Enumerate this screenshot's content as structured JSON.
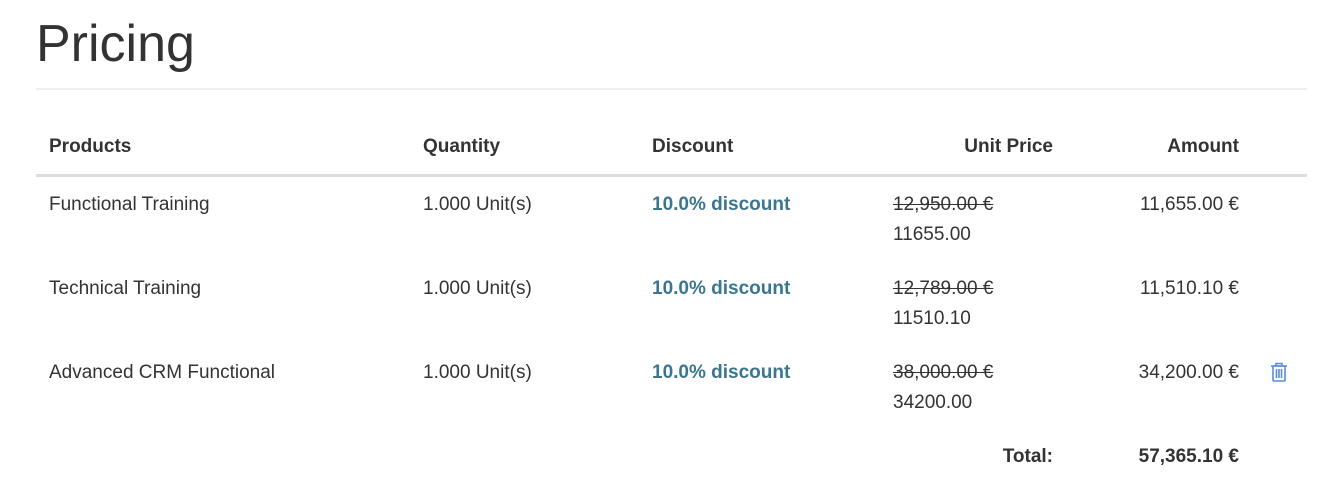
{
  "title": "Pricing",
  "columns": {
    "products": "Products",
    "quantity": "Quantity",
    "discount": "Discount",
    "unit_price": "Unit Price",
    "amount": "Amount"
  },
  "rows": [
    {
      "product": "Functional Training",
      "quantity": "1.000 Unit(s)",
      "discount": "10.0% discount",
      "original_price": "12,950.00 €",
      "unit_price": "11655.00",
      "amount": "11,655.00 €"
    },
    {
      "product": "Technical Training",
      "quantity": "1.000 Unit(s)",
      "discount": "10.0% discount",
      "original_price": "12,789.00 €",
      "unit_price": "11510.10",
      "amount": "11,510.10 €"
    },
    {
      "product": "Advanced CRM Functional",
      "quantity": "1.000 Unit(s)",
      "discount": "10.0% discount",
      "original_price": "38,000.00 €",
      "unit_price": "34200.00",
      "amount": "34,200.00 €",
      "icon": "trash-icon"
    }
  ],
  "total": {
    "label": "Total:",
    "value": "57,365.10 €"
  },
  "colors": {
    "discount": "#3a7690",
    "trash": "#5b8dd6"
  }
}
